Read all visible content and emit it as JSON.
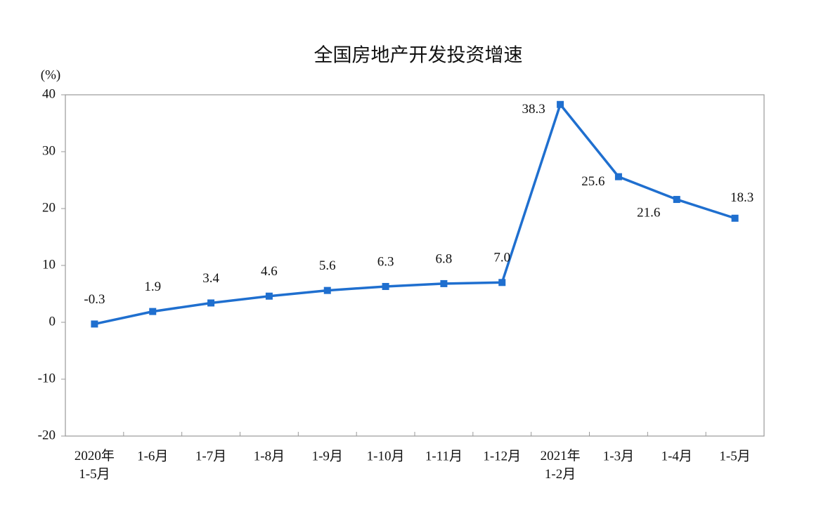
{
  "chart_data": {
    "type": "line",
    "title": "全国房地产开发投资增速",
    "y_label": "(%)",
    "categories": [
      "2020年\n1-5月",
      "1-6月",
      "1-7月",
      "1-8月",
      "1-9月",
      "1-10月",
      "1-11月",
      "1-12月",
      "2021年\n1-2月",
      "1-3月",
      "1-4月",
      "1-5月"
    ],
    "series": [
      {
        "name": "全国房地产开发投资增速",
        "color": "#1f6fcf",
        "values": [
          -0.3,
          1.9,
          3.4,
          4.6,
          5.6,
          6.3,
          6.8,
          7.0,
          38.3,
          25.6,
          21.6,
          18.3
        ],
        "value_labels": [
          "-0.3",
          "1.9",
          "3.4",
          "4.6",
          "5.6",
          "6.3",
          "6.8",
          "7.0",
          "38.3",
          "25.6",
          "21.6",
          "18.3"
        ]
      }
    ],
    "ylim": [
      -20,
      40
    ],
    "yticks": [
      -20,
      -10,
      0,
      10,
      20,
      30,
      40
    ],
    "grid": false
  }
}
